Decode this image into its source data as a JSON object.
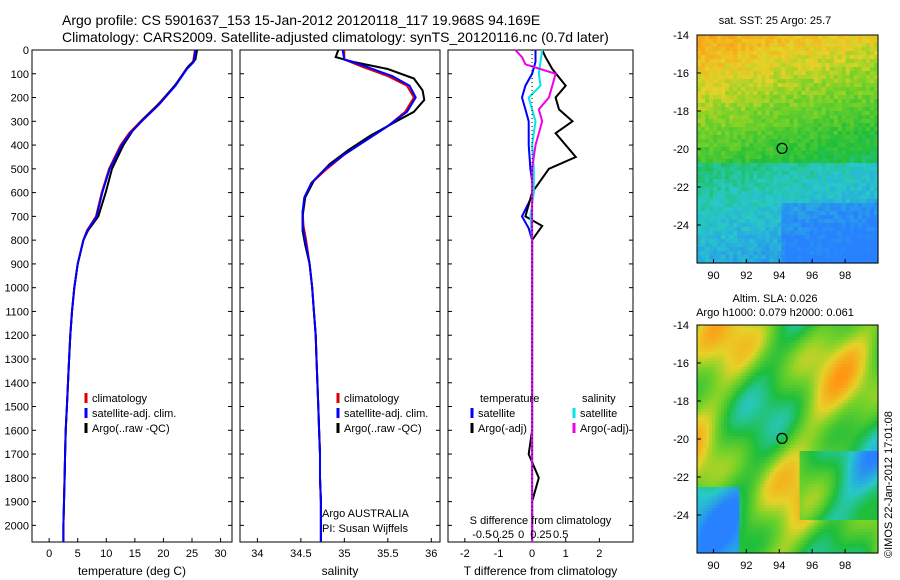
{
  "header": {
    "title1": "Argo profile: CS 5901637_153 15-Jan-2012 20120118_117 19.968S 94.169E",
    "title2": "Climatology: CARS2009. Satellite-adjusted climatology: synTS_20120116.nc (0.7d later)"
  },
  "side_text": "©IMOS 22-Jan-2012 17:01:08",
  "colors": {
    "climatology": "#dd0000",
    "satellite": "#0000ff",
    "argo": "#000000",
    "sal_satellite": "#00e5ee",
    "sal_argo": "#ee00ee"
  },
  "chart_data": [
    {
      "type": "line",
      "id": "temperature",
      "xlabel": "temperature (deg C)",
      "xlim": [
        -3,
        32
      ],
      "xticks": [
        0,
        5,
        10,
        15,
        20,
        25,
        30
      ],
      "ylim": [
        2070,
        0
      ],
      "yticks": [
        0,
        100,
        200,
        300,
        400,
        500,
        600,
        700,
        800,
        900,
        1000,
        1100,
        1200,
        1300,
        1400,
        1500,
        1600,
        1700,
        1800,
        1900,
        2000
      ],
      "legend": [
        "climatology",
        "satellite-adj. clim.",
        "Argo(..raw -QC)"
      ],
      "series": [
        {
          "name": "climatology",
          "color": "#dd0000",
          "points": [
            [
              25.5,
              0
            ],
            [
              25.2,
              50
            ],
            [
              24,
              80
            ],
            [
              22,
              150
            ],
            [
              19,
              230
            ],
            [
              16,
              300
            ],
            [
              14,
              350
            ],
            [
              12.5,
              400
            ],
            [
              10.5,
              500
            ],
            [
              9.2,
              600
            ],
            [
              8.2,
              700
            ],
            [
              6.6,
              760
            ],
            [
              6,
              800
            ],
            [
              5,
              900
            ],
            [
              4.4,
              1000
            ],
            [
              4,
              1100
            ],
            [
              3.7,
              1200
            ],
            [
              3.5,
              1300
            ],
            [
              3.3,
              1400
            ],
            [
              3.1,
              1500
            ],
            [
              2.9,
              1600
            ],
            [
              2.8,
              1700
            ],
            [
              2.7,
              1800
            ],
            [
              2.6,
              1900
            ],
            [
              2.5,
              2000
            ],
            [
              2.5,
              2070
            ]
          ]
        },
        {
          "name": "Argo(..raw -QC)",
          "color": "#000000",
          "points": [
            [
              25.9,
              0
            ],
            [
              25.6,
              40
            ],
            [
              24.3,
              70
            ],
            [
              22.3,
              140
            ],
            [
              19.5,
              220
            ],
            [
              16.5,
              290
            ],
            [
              14.6,
              340
            ],
            [
              13,
              400
            ],
            [
              11,
              500
            ],
            [
              9.9,
              600
            ],
            [
              8.6,
              700
            ],
            [
              6.8,
              760
            ],
            [
              6,
              800
            ],
            [
              5,
              900
            ],
            [
              4.4,
              1000
            ],
            [
              4,
              1100
            ],
            [
              3.7,
              1200
            ],
            [
              3.5,
              1300
            ],
            [
              3.3,
              1400
            ],
            [
              3.1,
              1500
            ],
            [
              2.9,
              1600
            ],
            [
              2.8,
              1700
            ],
            [
              2.7,
              1800
            ],
            [
              2.6,
              1900
            ],
            [
              2.5,
              2000
            ],
            [
              2.5,
              2070
            ]
          ]
        },
        {
          "name": "satellite-adj. clim.",
          "color": "#0000ff",
          "points": [
            [
              25.6,
              0
            ],
            [
              25.3,
              50
            ],
            [
              24.1,
              80
            ],
            [
              22.1,
              150
            ],
            [
              19.2,
              230
            ],
            [
              16.2,
              300
            ],
            [
              14.2,
              350
            ],
            [
              12.7,
              400
            ],
            [
              10.6,
              500
            ],
            [
              9.3,
              600
            ],
            [
              8.3,
              700
            ],
            [
              6.7,
              760
            ],
            [
              6,
              800
            ],
            [
              5,
              900
            ],
            [
              4.4,
              1000
            ],
            [
              4,
              1100
            ],
            [
              3.7,
              1200
            ],
            [
              3.5,
              1300
            ],
            [
              3.3,
              1400
            ],
            [
              3.1,
              1500
            ],
            [
              2.9,
              1600
            ],
            [
              2.8,
              1700
            ],
            [
              2.7,
              1800
            ],
            [
              2.6,
              1900
            ],
            [
              2.5,
              2000
            ],
            [
              2.5,
              2070
            ]
          ]
        }
      ]
    },
    {
      "type": "line",
      "id": "salinity",
      "xlabel": "salinity",
      "xlim": [
        33.8,
        36.1
      ],
      "xticks": [
        34,
        34.5,
        35,
        35.5,
        36
      ],
      "xtick_labels": [
        "34",
        "34.5",
        "35",
        "35.5",
        "36"
      ],
      "ylim": [
        2070,
        0
      ],
      "legend": [
        "climatology",
        "satellite-adj. clim.",
        "Argo(..raw -QC)"
      ],
      "annotation": [
        "Argo AUSTRALIA",
        "PI: Susan Wijffels"
      ],
      "series": [
        {
          "name": "climatology",
          "color": "#dd0000",
          "points": [
            [
              35,
              0
            ],
            [
              35.0,
              40
            ],
            [
              35.2,
              70
            ],
            [
              35.5,
              110
            ],
            [
              35.72,
              150
            ],
            [
              35.8,
              200
            ],
            [
              35.7,
              260
            ],
            [
              35.5,
              320
            ],
            [
              35.25,
              380
            ],
            [
              35.0,
              440
            ],
            [
              34.8,
              500
            ],
            [
              34.62,
              560
            ],
            [
              34.55,
              620
            ],
            [
              34.52,
              680
            ],
            [
              34.53,
              740
            ],
            [
              34.56,
              800
            ],
            [
              34.6,
              900
            ],
            [
              34.63,
              1000
            ],
            [
              34.65,
              1100
            ],
            [
              34.67,
              1200
            ],
            [
              34.68,
              1300
            ],
            [
              34.69,
              1400
            ],
            [
              34.7,
              1500
            ],
            [
              34.71,
              1600
            ],
            [
              34.72,
              1700
            ],
            [
              34.72,
              1800
            ],
            [
              34.73,
              1900
            ],
            [
              34.73,
              2000
            ],
            [
              34.73,
              2070
            ]
          ]
        },
        {
          "name": "Argo(..raw -QC)",
          "color": "#000000",
          "points": [
            [
              34.93,
              0
            ],
            [
              34.9,
              30
            ],
            [
              35.1,
              50
            ],
            [
              35.5,
              80
            ],
            [
              35.8,
              120
            ],
            [
              35.9,
              170
            ],
            [
              35.92,
              210
            ],
            [
              35.8,
              260
            ],
            [
              35.6,
              300
            ],
            [
              35.3,
              360
            ],
            [
              35.05,
              420
            ],
            [
              34.83,
              480
            ],
            [
              34.65,
              550
            ],
            [
              34.55,
              620
            ],
            [
              34.52,
              700
            ],
            [
              34.52,
              760
            ],
            [
              34.55,
              820
            ],
            [
              34.6,
              900
            ],
            [
              34.63,
              1000
            ],
            [
              34.65,
              1100
            ],
            [
              34.67,
              1200
            ],
            [
              34.68,
              1300
            ],
            [
              34.69,
              1400
            ],
            [
              34.7,
              1500
            ],
            [
              34.71,
              1600
            ],
            [
              34.72,
              1700
            ],
            [
              34.72,
              1800
            ],
            [
              34.73,
              1900
            ],
            [
              34.73,
              2000
            ],
            [
              34.73,
              2070
            ]
          ]
        },
        {
          "name": "satellite-adj. clim.",
          "color": "#0000ff",
          "points": [
            [
              34.98,
              0
            ],
            [
              35.0,
              40
            ],
            [
              35.25,
              70
            ],
            [
              35.55,
              110
            ],
            [
              35.75,
              150
            ],
            [
              35.82,
              200
            ],
            [
              35.72,
              260
            ],
            [
              35.5,
              320
            ],
            [
              35.25,
              380
            ],
            [
              35.0,
              440
            ],
            [
              34.78,
              500
            ],
            [
              34.62,
              560
            ],
            [
              34.54,
              620
            ],
            [
              34.52,
              680
            ],
            [
              34.52,
              740
            ],
            [
              34.55,
              800
            ],
            [
              34.6,
              900
            ],
            [
              34.63,
              1000
            ],
            [
              34.65,
              1100
            ],
            [
              34.67,
              1200
            ],
            [
              34.68,
              1300
            ],
            [
              34.69,
              1400
            ],
            [
              34.7,
              1500
            ],
            [
              34.71,
              1600
            ],
            [
              34.72,
              1700
            ],
            [
              34.72,
              1800
            ],
            [
              34.73,
              1900
            ],
            [
              34.73,
              2000
            ],
            [
              34.73,
              2070
            ]
          ]
        }
      ]
    },
    {
      "type": "line",
      "id": "difference",
      "xlabel": "T difference from climatology",
      "top_label": "S difference from climatology",
      "xlim": [
        -2.5,
        3
      ],
      "xticks": [
        -2,
        -1,
        0,
        1,
        2
      ],
      "s_ticks": [
        -0.5,
        -0.25,
        0,
        0.25,
        0.5
      ],
      "s_tick_labels": [
        "-0.5",
        "-0.25",
        "0",
        "0.25",
        "0.5"
      ],
      "ylim": [
        2070,
        0
      ],
      "legend_t": {
        "heading": "temperature",
        "items": [
          "satellite",
          "Argo(-adj)"
        ]
      },
      "legend_s": {
        "heading": "salinity",
        "items": [
          "satellite",
          "Argo(-adj)"
        ]
      },
      "series": [
        {
          "name": "T satellite",
          "color": "#0000ff",
          "points": [
            [
              0.1,
              0
            ],
            [
              0.1,
              50
            ],
            [
              0,
              100
            ],
            [
              -0.2,
              150
            ],
            [
              -0.3,
              200
            ],
            [
              -0.2,
              250
            ],
            [
              -0.1,
              300
            ],
            [
              -0.1,
              400
            ],
            [
              -0.05,
              500
            ],
            [
              0.05,
              600
            ],
            [
              -0.3,
              700
            ],
            [
              -0.1,
              750
            ],
            [
              0,
              800
            ],
            [
              0,
              1000
            ],
            [
              0,
              1500
            ],
            [
              0,
              2000
            ],
            [
              0,
              2070
            ]
          ]
        },
        {
          "name": "T Argo(-adj)",
          "color": "#000000",
          "points": [
            [
              0.3,
              0
            ],
            [
              0.4,
              30
            ],
            [
              0.6,
              80
            ],
            [
              1.0,
              150
            ],
            [
              0.7,
              200
            ],
            [
              0.8,
              250
            ],
            [
              1.2,
              300
            ],
            [
              0.7,
              350
            ],
            [
              1.3,
              450
            ],
            [
              0.5,
              500
            ],
            [
              0,
              600
            ],
            [
              -0.2,
              700
            ],
            [
              0.3,
              740
            ],
            [
              0,
              800
            ],
            [
              0,
              1000
            ],
            [
              0,
              1600
            ],
            [
              -0.1,
              1700
            ],
            [
              0.2,
              1800
            ],
            [
              0,
              1900
            ],
            [
              0,
              2070
            ]
          ]
        },
        {
          "name": "S satellite",
          "color": "#00e5ee",
          "points": [
            [
              0.3,
              0
            ],
            [
              0.2,
              100
            ],
            [
              0.25,
              150
            ],
            [
              -0.1,
              200
            ],
            [
              0.1,
              300
            ],
            [
              0,
              400
            ],
            [
              0.05,
              500
            ],
            [
              0.05,
              600
            ],
            [
              -0.05,
              700
            ],
            [
              0,
              800
            ],
            [
              0,
              2070
            ]
          ]
        },
        {
          "name": "S Argo(-adj)",
          "color": "#ee00ee",
          "points": [
            [
              -0.5,
              0
            ],
            [
              -0.3,
              30
            ],
            [
              -0.2,
              60
            ],
            [
              0.7,
              100
            ],
            [
              0.6,
              150
            ],
            [
              0.5,
              200
            ],
            [
              0.2,
              250
            ],
            [
              0.3,
              300
            ],
            [
              0.1,
              400
            ],
            [
              0,
              500
            ],
            [
              0,
              1400
            ],
            [
              0,
              1500
            ],
            [
              0,
              2070
            ]
          ]
        }
      ]
    },
    {
      "type": "heatmap",
      "id": "sst_map",
      "title": "sat. SST: 25 Argo: 25.7",
      "xlim": [
        89,
        100
      ],
      "ylim": [
        -26,
        -14
      ],
      "xticks": [
        90,
        92,
        94,
        96,
        98
      ],
      "yticks": [
        -14,
        -16,
        -18,
        -20,
        -22,
        -24
      ],
      "marker": {
        "lon": 94.169,
        "lat": -19.968
      }
    },
    {
      "type": "heatmap",
      "id": "sla_map",
      "title": "Altim. SLA: 0.026",
      "subtitle": "Argo h1000: 0.079 h2000: 0.061",
      "xlim": [
        89,
        100
      ],
      "ylim": [
        -26,
        -14
      ],
      "xticks": [
        90,
        92,
        94,
        96,
        98
      ],
      "yticks": [
        -14,
        -16,
        -18,
        -20,
        -22,
        -24
      ],
      "marker": {
        "lon": 94.169,
        "lat": -19.968
      }
    }
  ]
}
